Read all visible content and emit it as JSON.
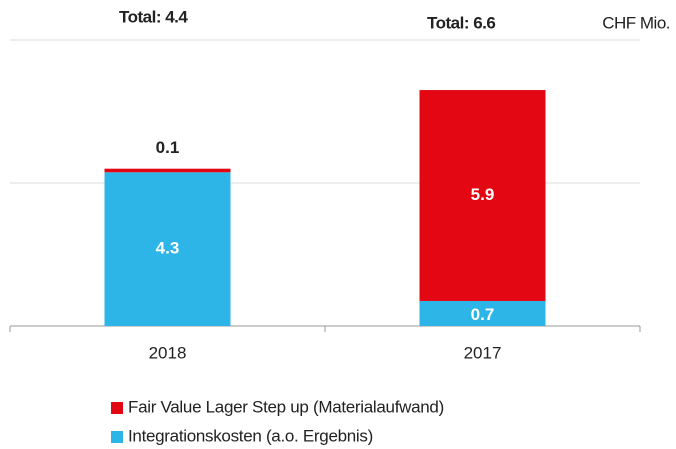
{
  "chart_data": {
    "type": "stacked_bar",
    "annotations": [
      "Total: 4.4",
      "Total: 6.6"
    ],
    "unit_label": "CHF Mio.",
    "categories": [
      "2018",
      "2017"
    ],
    "series": [
      {
        "name": "Integrationskosten (a.o. Ergebnis)",
        "color": "#2db5e8",
        "values": [
          4.3,
          0.7
        ]
      },
      {
        "name": "Fair Value Lager Step up (Materialaufwand)",
        "color": "#e30613",
        "values": [
          0.1,
          5.9
        ]
      }
    ],
    "ylim": [
      0,
      8
    ],
    "yticks": [
      0,
      4,
      8
    ],
    "grid": true
  }
}
